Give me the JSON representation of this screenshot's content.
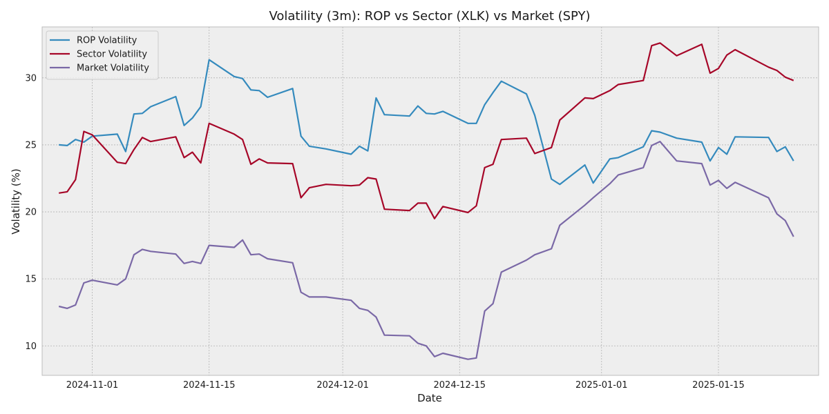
{
  "chart_data": {
    "type": "line",
    "title": "Volatility (3m): ROP vs Sector (XLK) vs Market (SPY)",
    "xlabel": "Date",
    "ylabel": "Volatility (%)",
    "xlim": [
      "2024-10-26",
      "2025-01-27"
    ],
    "ylim": [
      7.8,
      33.8
    ],
    "x_ticks": [
      {
        "date": "2024-11-01",
        "label": "2024-11-01"
      },
      {
        "date": "2024-11-15",
        "label": "2024-11-15"
      },
      {
        "date": "2024-12-01",
        "label": "2024-12-01"
      },
      {
        "date": "2024-12-15",
        "label": "2024-12-15"
      },
      {
        "date": "2025-01-01",
        "label": "2025-01-01"
      },
      {
        "date": "2025-01-15",
        "label": "2025-01-15"
      }
    ],
    "y_ticks": [
      10,
      15,
      20,
      25,
      30
    ],
    "grid": true,
    "legend_position": "top-left",
    "x": [
      "2024-10-28",
      "2024-10-29",
      "2024-10-30",
      "2024-10-31",
      "2024-11-01",
      "2024-11-04",
      "2024-11-05",
      "2024-11-06",
      "2024-11-07",
      "2024-11-08",
      "2024-11-11",
      "2024-11-12",
      "2024-11-13",
      "2024-11-14",
      "2024-11-15",
      "2024-11-18",
      "2024-11-19",
      "2024-11-20",
      "2024-11-21",
      "2024-11-22",
      "2024-11-25",
      "2024-11-26",
      "2024-11-27",
      "2024-11-29",
      "2024-12-02",
      "2024-12-03",
      "2024-12-04",
      "2024-12-05",
      "2024-12-06",
      "2024-12-09",
      "2024-12-10",
      "2024-12-11",
      "2024-12-12",
      "2024-12-13",
      "2024-12-16",
      "2024-12-17",
      "2024-12-18",
      "2024-12-19",
      "2024-12-20",
      "2024-12-23",
      "2024-12-24",
      "2024-12-26",
      "2024-12-27",
      "2024-12-30",
      "2024-12-31",
      "2025-01-02",
      "2025-01-03",
      "2025-01-06",
      "2025-01-07",
      "2025-01-08",
      "2025-01-10",
      "2025-01-13",
      "2025-01-14",
      "2025-01-15",
      "2025-01-16",
      "2025-01-17",
      "2025-01-21",
      "2025-01-22",
      "2025-01-23",
      "2025-01-24"
    ],
    "series": [
      {
        "name": "ROP Volatility",
        "color": "#348abd",
        "values": [
          25.0,
          24.95,
          25.4,
          25.2,
          25.65,
          25.8,
          24.5,
          27.3,
          27.35,
          27.85,
          28.6,
          26.45,
          27.0,
          27.85,
          31.35,
          30.1,
          29.95,
          29.1,
          29.05,
          28.55,
          29.2,
          25.65,
          24.9,
          24.7,
          24.3,
          24.9,
          24.55,
          28.5,
          27.25,
          27.15,
          27.9,
          27.35,
          27.3,
          27.5,
          26.6,
          26.6,
          28.0,
          28.9,
          29.75,
          28.8,
          27.2,
          22.45,
          22.05,
          23.5,
          22.15,
          23.95,
          24.05,
          24.85,
          26.05,
          25.95,
          25.5,
          25.2,
          23.8,
          24.8,
          24.3,
          25.6,
          25.55,
          24.5,
          24.85,
          23.8
        ]
      },
      {
        "name": "Sector Volatility",
        "color": "#a60628",
        "values": [
          21.4,
          21.5,
          22.4,
          26.0,
          25.75,
          23.7,
          23.6,
          24.65,
          25.55,
          25.25,
          25.6,
          24.05,
          24.45,
          23.65,
          26.6,
          25.8,
          25.4,
          23.55,
          23.95,
          23.65,
          23.6,
          21.05,
          21.8,
          22.05,
          21.95,
          22.0,
          22.55,
          22.45,
          20.2,
          20.1,
          20.65,
          20.65,
          19.5,
          20.4,
          19.95,
          20.45,
          23.3,
          23.55,
          25.4,
          25.5,
          24.35,
          24.8,
          26.85,
          28.5,
          28.45,
          29.05,
          29.5,
          29.8,
          32.4,
          32.6,
          31.65,
          32.5,
          30.35,
          30.7,
          31.7,
          32.1,
          30.8,
          30.55,
          30.05,
          29.8
        ]
      },
      {
        "name": "Market Volatility",
        "color": "#7a68a6",
        "values": [
          12.95,
          12.8,
          13.05,
          14.7,
          14.9,
          14.55,
          15.0,
          16.8,
          17.2,
          17.05,
          16.85,
          16.15,
          16.3,
          16.15,
          17.5,
          17.35,
          17.9,
          16.8,
          16.85,
          16.5,
          16.2,
          14.0,
          13.65,
          13.65,
          13.4,
          12.8,
          12.65,
          12.15,
          10.8,
          10.75,
          10.2,
          10.0,
          9.2,
          9.45,
          9.0,
          9.1,
          12.6,
          13.15,
          15.5,
          16.4,
          16.8,
          17.25,
          19.0,
          20.5,
          21.05,
          22.1,
          22.75,
          23.3,
          24.95,
          25.25,
          23.8,
          23.6,
          22.0,
          22.35,
          21.75,
          22.2,
          21.05,
          19.85,
          19.35,
          18.15
        ]
      }
    ]
  }
}
